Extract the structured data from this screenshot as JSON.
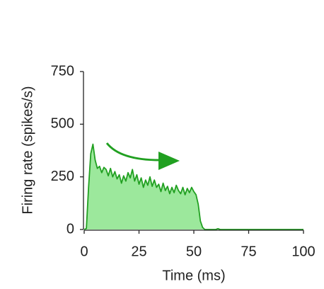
{
  "chart_data": {
    "type": "area",
    "xlabel": "Time (ms)",
    "ylabel": "Firing rate (spikes/s)",
    "x": [
      0,
      1,
      2,
      3,
      4,
      5,
      6,
      7,
      8,
      9,
      10,
      11,
      12,
      13,
      14,
      15,
      16,
      17,
      18,
      19,
      20,
      21,
      22,
      23,
      24,
      25,
      26,
      27,
      28,
      29,
      30,
      31,
      32,
      33,
      34,
      35,
      36,
      37,
      38,
      39,
      40,
      41,
      42,
      43,
      44,
      45,
      46,
      47,
      48,
      49,
      50,
      51,
      52,
      53,
      54,
      55,
      60,
      61,
      62,
      100
    ],
    "values": [
      0,
      5,
      200,
      360,
      405,
      330,
      290,
      300,
      270,
      295,
      285,
      255,
      290,
      250,
      275,
      240,
      260,
      220,
      255,
      230,
      270,
      245,
      285,
      230,
      260,
      215,
      245,
      200,
      235,
      210,
      250,
      205,
      235,
      200,
      215,
      180,
      220,
      185,
      205,
      170,
      200,
      175,
      210,
      185,
      170,
      200,
      165,
      195,
      175,
      200,
      180,
      165,
      120,
      40,
      10,
      0,
      0,
      4,
      0,
      0
    ],
    "color": "#21a021",
    "fill_color": "#9ce89c",
    "xlim": [
      0,
      100
    ],
    "xticks": [
      0,
      25,
      50,
      75,
      100
    ],
    "ylim": [
      0,
      750
    ],
    "yticks": [
      0,
      250,
      500,
      750
    ]
  }
}
